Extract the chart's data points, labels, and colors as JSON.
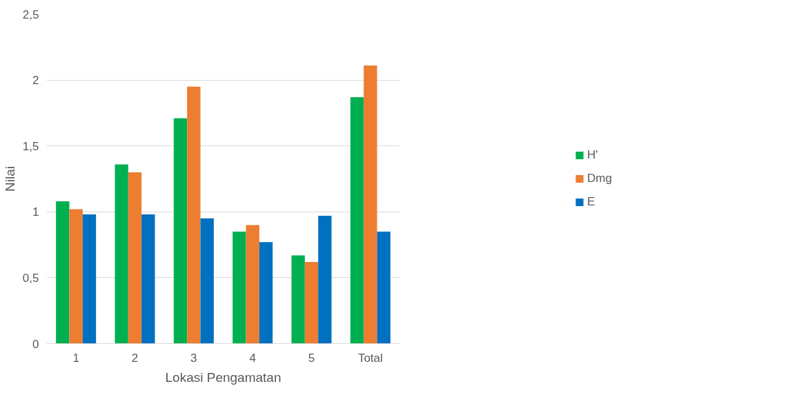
{
  "chart_data": {
    "type": "bar",
    "xlabel": "Lokasi Pengamatan",
    "ylabel": "Nilai",
    "categories": [
      "1",
      "2",
      "3",
      "4",
      "5",
      "Total"
    ],
    "series": [
      {
        "name": "H'",
        "color": "#00b050",
        "values": [
          1.08,
          1.36,
          1.71,
          0.85,
          0.67,
          1.87
        ]
      },
      {
        "name": "Dmg",
        "color": "#ed7d31",
        "values": [
          1.02,
          1.3,
          1.95,
          0.9,
          0.62,
          2.11
        ]
      },
      {
        "name": "E",
        "color": "#0070c0",
        "values": [
          0.98,
          0.98,
          0.95,
          0.77,
          0.97,
          0.85
        ]
      }
    ],
    "ylim": [
      0,
      2.5
    ],
    "yticks": [
      0,
      {
        "value": 0.5,
        "label": "0,5"
      },
      1,
      {
        "value": 1.5,
        "label": "1,5"
      },
      2,
      {
        "value": 2.5,
        "label": "2,5"
      }
    ],
    "grid": "y",
    "legend": "right"
  }
}
